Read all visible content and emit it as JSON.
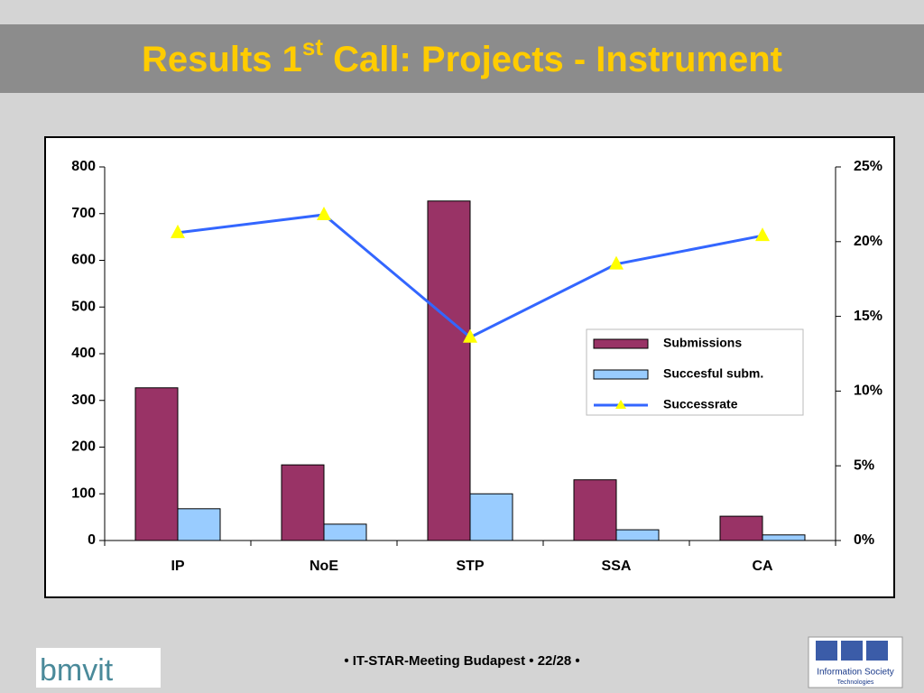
{
  "slide": {
    "title": {
      "text": "Results 1",
      "superscript": "st",
      "rest": " Call: Projects - Instrument"
    },
    "footer": "• IT-STAR-Meeting Budapest • 22/28 •",
    "logo_left": "bmvit",
    "logo_right": [
      "Information Society",
      "Technologies"
    ]
  },
  "chart_data": {
    "type": "bar",
    "categories": [
      "IP",
      "NoE",
      "STP",
      "SSA",
      "CA"
    ],
    "series": [
      {
        "name": "Submissions",
        "color": "#993366",
        "values": [
          327,
          162,
          727,
          130,
          52
        ]
      },
      {
        "name": "Succesful subm.",
        "color": "#99ccff",
        "values": [
          68,
          35,
          100,
          23,
          12
        ]
      },
      {
        "name": "Successrate",
        "type": "line",
        "axis": "y2",
        "color": "#3366ff",
        "marker_color": "#ffff00",
        "values": [
          20.6,
          21.8,
          13.6,
          18.5,
          20.4
        ]
      }
    ],
    "ylim": [
      0,
      800
    ],
    "yticks": [
      0,
      100,
      200,
      300,
      400,
      500,
      600,
      700,
      800
    ],
    "y2lim": [
      0,
      25
    ],
    "y2ticks": [
      {
        "value": 0,
        "label": "0%"
      },
      {
        "value": 5,
        "label": "5%"
      },
      {
        "value": 10,
        "label": "10%"
      },
      {
        "value": 15,
        "label": "15%"
      },
      {
        "value": 20,
        "label": "20%"
      },
      {
        "value": 25,
        "label": "25%"
      }
    ],
    "grid": false,
    "legend": "right"
  }
}
